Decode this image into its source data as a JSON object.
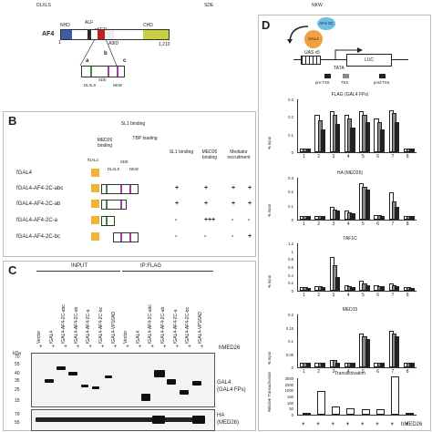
{
  "top_strip": {
    "dlxls": "DLXLS",
    "sde": "SDE",
    "nkw": "NKW"
  },
  "panel_a": {
    "protein": "AF4",
    "nhd": "NHD",
    "alf": "ALF",
    "pser": "pSER",
    "chd": "CHD",
    "a9id": "A9ID",
    "start": "1",
    "end": "1,210",
    "segs": [
      "a",
      "b",
      "c"
    ],
    "sde": "SDE",
    "dlxls": "DLXLS",
    "nkw": "NKW"
  },
  "panel_b": {
    "label": "B",
    "col_headers": [
      "SL1 binding",
      "MED26 binding",
      "Mediator recruitment",
      "TBP loading"
    ],
    "top_labels": [
      "MED26 binding",
      "SL1 binding",
      "TBP loading"
    ],
    "motifs": [
      "DLXLS",
      "SDE",
      "NKW"
    ],
    "rows": [
      {
        "name": "fGAL4",
        "values": [
          "",
          "",
          "",
          ""
        ]
      },
      {
        "name": "fGAL4-AF4-2C-abc",
        "values": [
          "+",
          "+",
          "+",
          "+"
        ]
      },
      {
        "name": "fGAL4-AF4-2C-ab",
        "values": [
          "+",
          "+",
          "+",
          "+"
        ]
      },
      {
        "name": "fGAL4-AF4-2C-a",
        "values": [
          "-",
          "+++",
          "-",
          "-"
        ]
      },
      {
        "name": "fGAL4-AF4-2C-bc",
        "values": [
          "-",
          "-",
          "-",
          "+"
        ]
      }
    ],
    "row_prefix": "fGAL4"
  },
  "panel_c": {
    "label": "C",
    "input_label": "INPUT",
    "ip_label": "IP:FLAG",
    "lanes": [
      "Vector",
      "fGAL4",
      "fGAL4-AF4-2C-abc",
      "fGAL4-AF4-2C-ab",
      "fGAL4-AF4-2C-a",
      "fGAL4-AF4-2C-bc",
      "fGAL4-VP16AD",
      "Vector",
      "fGAL4",
      "fGAL4-AF4-2C-abc",
      "fGAL4-AF4-2C-ab",
      "fGAL4-AF4-2C-a",
      "fGAL4-AF4-2C-bc",
      "fGAL4-VP16AD"
    ],
    "hmed26_label": "hMED26",
    "hmed26_row": [
      "+",
      "+",
      "+",
      "+",
      "+",
      "+",
      "+",
      "+",
      "+",
      "+",
      "+",
      "+",
      "+",
      "+"
    ],
    "kda_label": "kDa",
    "markers": [
      "70",
      "55",
      "40",
      "35",
      "25",
      "15"
    ],
    "markers2": [
      "70",
      "55"
    ],
    "blot1_label": "GAL4",
    "blot1_sub": "(GAL4 FPs)",
    "blot2_label": "HA",
    "blot2_sub": "(MED26)"
  },
  "panel_d": {
    "label": "D",
    "af4": "AF4-2C",
    "gal4": "GAL4",
    "uas": "UAS x5",
    "luc": "LUC",
    "tata": "TATA",
    "pre": "pre-TSS",
    "tss": "TSS",
    "post": "post-TSS",
    "ylabel": "% Input",
    "charts": [
      {
        "title": "FLAG (GAL4 FPs)",
        "ticks": [
          "0.3",
          "0.2",
          "0.1",
          "0"
        ]
      },
      {
        "title": "HA (MED26)",
        "ticks": [
          "0.3",
          "0.2",
          "0.1",
          "0"
        ]
      },
      {
        "title": "TAF1C",
        "ticks": [
          "1.2",
          "1",
          "0.8",
          "0.6",
          "0.4",
          "0.2",
          "0"
        ]
      },
      {
        "title": "MED15",
        "ticks": [
          "0.2",
          "0.15",
          "0.1",
          "0.05",
          "0"
        ]
      },
      {
        "title": "Transactivation",
        "ticks": [
          "3000",
          "2000",
          "1000",
          "150",
          "100",
          "50",
          "0"
        ]
      }
    ],
    "x_ticks": [
      "1",
      "2",
      "3",
      "4",
      "5",
      "6",
      "7",
      "8"
    ],
    "trans_ylabel": "Relative Transactivation",
    "hmed26": "hMED26",
    "plus_row": [
      "+",
      "+",
      "+",
      "+",
      "+",
      "+",
      "+",
      "+"
    ]
  },
  "chart_data": [
    {
      "type": "bar",
      "title": "FLAG (GAL4 FPs)",
      "ylabel": "% Input",
      "categories": [
        "1",
        "2",
        "3",
        "4",
        "5",
        "6",
        "7",
        "8"
      ],
      "ylim": [
        0,
        0.3
      ],
      "series": [
        {
          "values": [
            0.01,
            0.2,
            0.22,
            0.2,
            0.22,
            0.18,
            0.23,
            0.01
          ]
        },
        {
          "values": [
            0.01,
            0.17,
            0.2,
            0.18,
            0.2,
            0.16,
            0.21,
            0.01
          ]
        },
        {
          "values": [
            0.01,
            0.12,
            0.15,
            0.13,
            0.16,
            0.12,
            0.16,
            0.01
          ]
        }
      ]
    },
    {
      "type": "bar",
      "title": "HA (MED26)",
      "ylabel": "% Input",
      "categories": [
        "1",
        "2",
        "3",
        "4",
        "5",
        "6",
        "7",
        "8"
      ],
      "ylim": [
        0,
        0.3
      ],
      "series": [
        {
          "values": [
            0.01,
            0.01,
            0.08,
            0.05,
            0.25,
            0.02,
            0.18,
            0.01
          ]
        },
        {
          "values": [
            0.01,
            0.01,
            0.06,
            0.04,
            0.22,
            0.02,
            0.12,
            0.01
          ]
        },
        {
          "values": [
            0.01,
            0.01,
            0.05,
            0.03,
            0.2,
            0.01,
            0.08,
            0.01
          ]
        }
      ]
    },
    {
      "type": "bar",
      "title": "TAF1C",
      "ylabel": "% Input",
      "categories": [
        "1",
        "2",
        "3",
        "4",
        "5",
        "6",
        "7",
        "8"
      ],
      "ylim": [
        0,
        1.2
      ],
      "series": [
        {
          "values": [
            0.05,
            0.08,
            0.8,
            0.1,
            0.2,
            0.1,
            0.15,
            0.05
          ]
        },
        {
          "values": [
            0.04,
            0.06,
            0.6,
            0.08,
            0.15,
            0.08,
            0.1,
            0.04
          ]
        },
        {
          "values": [
            0.03,
            0.05,
            0.3,
            0.05,
            0.1,
            0.06,
            0.07,
            0.03
          ]
        }
      ]
    },
    {
      "type": "bar",
      "title": "MED15",
      "ylabel": "% Input",
      "categories": [
        "1",
        "2",
        "3",
        "4",
        "5",
        "6",
        "7",
        "8"
      ],
      "ylim": [
        0,
        0.2
      ],
      "series": [
        {
          "values": [
            0.01,
            0.01,
            0.02,
            0.01,
            0.12,
            0.01,
            0.13,
            0.01
          ]
        },
        {
          "values": [
            0.01,
            0.01,
            0.02,
            0.01,
            0.11,
            0.01,
            0.12,
            0.01
          ]
        },
        {
          "values": [
            0.01,
            0.01,
            0.01,
            0.01,
            0.1,
            0.01,
            0.11,
            0.01
          ]
        }
      ]
    },
    {
      "type": "bar",
      "title": "Transactivation",
      "ylabel": "Relative Transactivation",
      "categories": [
        "1",
        "2",
        "3",
        "4",
        "5",
        "6",
        "7",
        "8"
      ],
      "series": [
        {
          "values": [
            1,
            90,
            25,
            20,
            15,
            15,
            2800,
            1
          ]
        }
      ]
    }
  ]
}
